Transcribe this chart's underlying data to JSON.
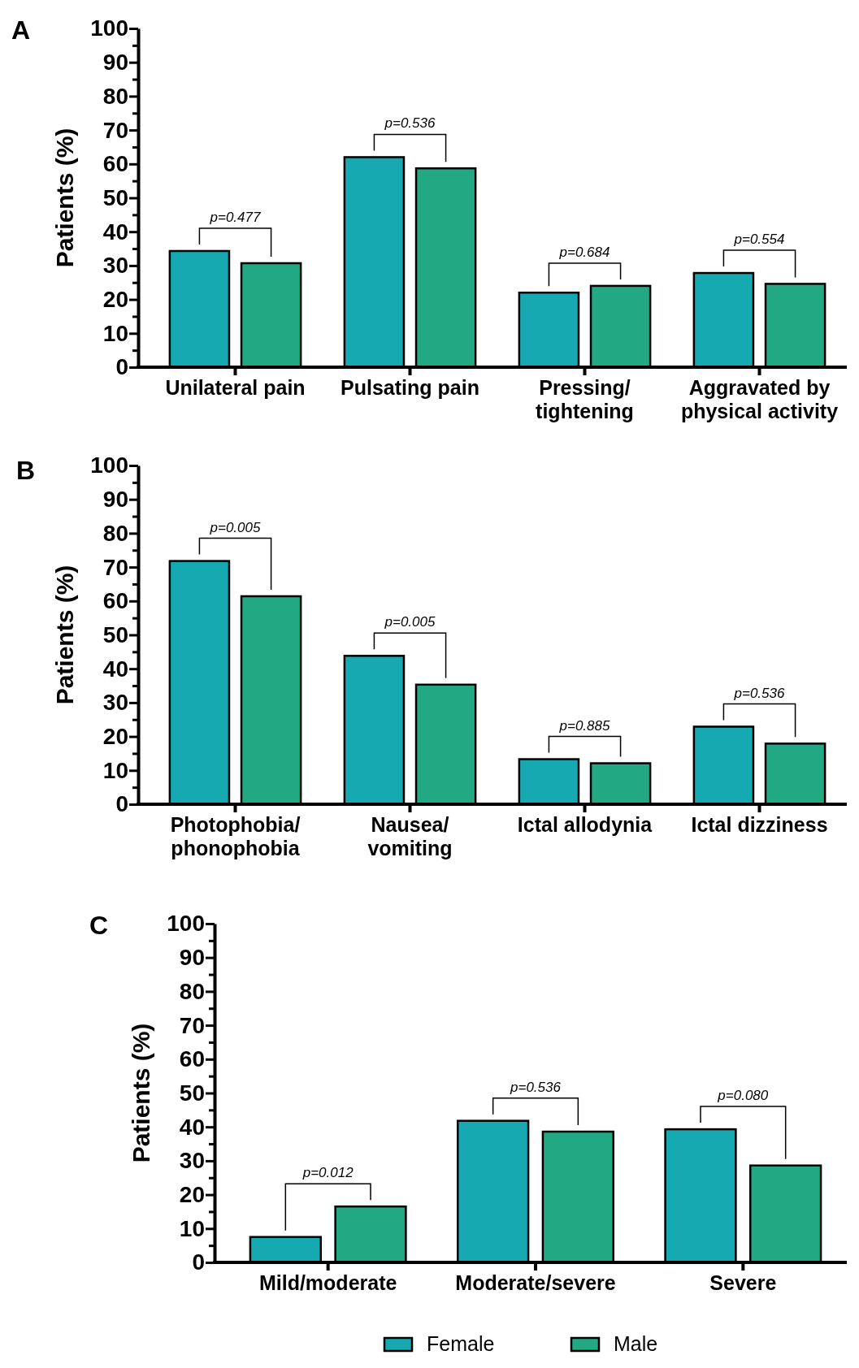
{
  "chart_data": [
    {
      "type": "bar",
      "title": "A",
      "ylabel": "Patients (%)",
      "categories": [
        "Unilateral pain",
        "Pulsating pain",
        "Pressing/tightening",
        "Aggravated by physical activity"
      ],
      "series": [
        {
          "color": "#17a9b1",
          "values": [
            34.3,
            62,
            22,
            27.8
          ]
        },
        {
          "color": "#23a884",
          "values": [
            30.7,
            58.7,
            24,
            24.6
          ]
        }
      ],
      "ylim": [
        0,
        100
      ],
      "yticks": [
        0,
        {
          "value": 5,
          "label": null
        },
        10,
        {
          "value": 15,
          "label": null
        },
        20,
        {
          "value": 25,
          "label": null
        },
        30,
        {
          "value": 35,
          "label": null
        },
        40,
        {
          "value": 45,
          "label": null
        },
        50,
        {
          "value": 55,
          "label": null
        },
        60,
        {
          "value": 65,
          "label": null
        },
        70,
        {
          "value": 75,
          "label": null
        },
        80,
        {
          "value": 85,
          "label": null
        },
        90,
        {
          "value": 95,
          "label": null
        },
        100
      ],
      "annotations": [
        "p=0.477",
        "p=0.536",
        "p=0.684",
        "p=0.554"
      ]
    },
    {
      "type": "bar",
      "title": "B",
      "ylabel": "Patients (%)",
      "categories": [
        "Photophobia/phonophobia",
        "Nausea/vomiting",
        "Ictal allodynia",
        "Ictal dizziness"
      ],
      "series": [
        {
          "color": "#17a9b1",
          "values": [
            71.8,
            43.8,
            13.3,
            22.9
          ]
        },
        {
          "color": "#23a884",
          "values": [
            61.4,
            35.3,
            12.1,
            17.9
          ]
        }
      ],
      "ylim": [
        0,
        100
      ],
      "yticks": [
        0,
        {
          "value": 5,
          "label": null
        },
        10,
        {
          "value": 15,
          "label": null
        },
        20,
        {
          "value": 25,
          "label": null
        },
        30,
        {
          "value": 35,
          "label": null
        },
        40,
        {
          "value": 45,
          "label": null
        },
        50,
        {
          "value": 55,
          "label": null
        },
        60,
        {
          "value": 65,
          "label": null
        },
        70,
        {
          "value": 75,
          "label": null
        },
        80,
        {
          "value": 85,
          "label": null
        },
        90,
        {
          "value": 95,
          "label": null
        },
        100
      ],
      "annotations": [
        "p=0.005",
        "p=0.005",
        "p=0.885",
        "p=0.536"
      ]
    },
    {
      "type": "bar",
      "title": "C",
      "ylabel": "Patients (%)",
      "categories": [
        "Mild/moderate",
        "Moderate/severe",
        "Severe"
      ],
      "series": [
        {
          "name": "Female",
          "color": "#17a9b1",
          "values": [
            7.5,
            41.8,
            39.3
          ]
        },
        {
          "name": "Male",
          "color": "#23a884",
          "values": [
            16.5,
            38.6,
            28.6
          ]
        }
      ],
      "ylim": [
        0,
        100
      ],
      "yticks": [
        0,
        {
          "value": 5,
          "label": null
        },
        10,
        {
          "value": 15,
          "label": null
        },
        20,
        {
          "value": 25,
          "label": null
        },
        30,
        {
          "value": 35,
          "label": null
        },
        40,
        {
          "value": 45,
          "label": null
        },
        50,
        {
          "value": 55,
          "label": null
        },
        60,
        {
          "value": 65,
          "label": null
        },
        70,
        {
          "value": 75,
          "label": null
        },
        80,
        {
          "value": 85,
          "label": null
        },
        90,
        {
          "value": 95,
          "label": null
        },
        100
      ],
      "legend": "bottom",
      "annotations": [
        "p=0.012",
        "p=0.536",
        "p=0.080"
      ]
    }
  ]
}
